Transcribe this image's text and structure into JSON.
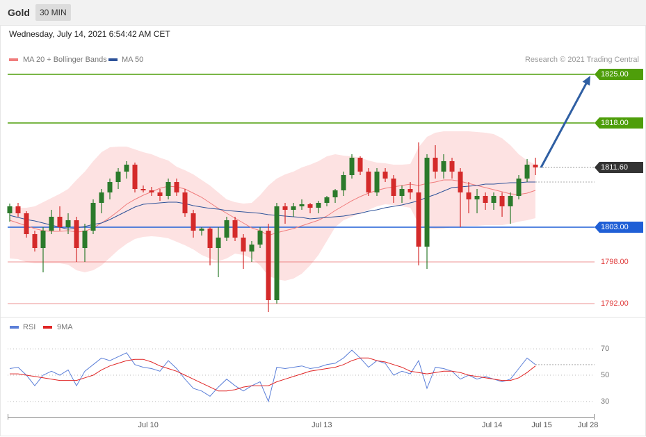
{
  "header": {
    "symbol": "Gold",
    "interval": "30 MIN",
    "timestamp": "Wednesday, July 14, 2021 6:54:42 AM CET"
  },
  "chart_data": [
    {
      "type": "candlestick",
      "credit": "Research © 2021 Trading Central",
      "up_color": "#2b7a2b",
      "down_color": "#d42a2a",
      "xlim": [
        -0.25,
        70.08
      ],
      "ylim": [
        1790.2,
        1826.2
      ],
      "open": [
        1805.0,
        1806.0,
        1805.0,
        1802.0,
        1800.0,
        1802.5,
        1804.5,
        1803.0,
        1804.0,
        1800.0,
        1802.5,
        1806.5,
        1808.0,
        1809.5,
        1811.0,
        1812.0,
        1808.5,
        1808.3,
        1808.0,
        1807.5,
        1809.5,
        1808.0,
        1805.0,
        1802.5,
        1802.8,
        1800.0,
        1801.5,
        1804.0,
        1801.5,
        1799.5,
        1800.5,
        1802.5,
        1792.5,
        1806.0,
        1805.5,
        1806.0,
        1806.3,
        1805.8,
        1806.5,
        1807.3,
        1808.3,
        1810.5,
        1813.0,
        1811.0,
        1808.0,
        1811.0,
        1810.0,
        1807.5,
        1808.5,
        1808.0,
        1800.2,
        1813.0,
        1811.0,
        1812.5,
        1811.0,
        1808.0,
        1807.0,
        1807.5,
        1806.5,
        1807.5,
        1806.0,
        1807.5,
        1810.0,
        1812.0
      ],
      "high": [
        1806.4,
        1806.5,
        1805.3,
        1802.5,
        1803.0,
        1805.5,
        1806.0,
        1805.0,
        1804.5,
        1803.5,
        1807.0,
        1808.5,
        1810.0,
        1811.5,
        1812.5,
        1812.3,
        1809.0,
        1808.8,
        1808.5,
        1810.0,
        1810.0,
        1808.5,
        1805.5,
        1803.0,
        1803.0,
        1803.0,
        1804.5,
        1804.5,
        1802.0,
        1801.0,
        1803.0,
        1803.5,
        1806.5,
        1806.5,
        1806.5,
        1807.0,
        1806.5,
        1806.8,
        1807.5,
        1808.5,
        1811.0,
        1813.5,
        1813.2,
        1811.5,
        1811.5,
        1811.5,
        1810.5,
        1809.0,
        1809.5,
        1815.2,
        1813.5,
        1814.8,
        1813.5,
        1813.0,
        1811.5,
        1809.5,
        1808.5,
        1808.0,
        1808.0,
        1808.0,
        1808.0,
        1810.5,
        1812.8,
        1813.0
      ],
      "low": [
        1803.8,
        1804.5,
        1801.5,
        1799.5,
        1796.5,
        1802.0,
        1802.5,
        1802.0,
        1798.0,
        1798.0,
        1802.0,
        1805.0,
        1807.0,
        1808.5,
        1810.0,
        1808.0,
        1808.0,
        1807.5,
        1806.8,
        1807.0,
        1807.5,
        1804.5,
        1801.5,
        1801.8,
        1797.5,
        1795.8,
        1801.0,
        1801.0,
        1797.0,
        1798.0,
        1800.0,
        1790.8,
        1792.0,
        1803.5,
        1804.5,
        1805.5,
        1805.0,
        1805.0,
        1806.0,
        1806.5,
        1807.5,
        1810.0,
        1810.5,
        1807.5,
        1807.5,
        1809.5,
        1806.5,
        1806.5,
        1807.0,
        1797.5,
        1797.0,
        1810.0,
        1810.0,
        1810.0,
        1803.0,
        1805.0,
        1805.0,
        1805.5,
        1805.5,
        1804.5,
        1803.5,
        1807.0,
        1809.5,
        1810.5
      ],
      "close": [
        1806.0,
        1805.0,
        1802.0,
        1800.0,
        1802.5,
        1804.5,
        1803.0,
        1804.0,
        1800.0,
        1802.5,
        1806.5,
        1808.0,
        1809.5,
        1811.0,
        1812.0,
        1808.5,
        1808.3,
        1808.0,
        1807.5,
        1809.5,
        1808.0,
        1805.0,
        1802.5,
        1802.8,
        1800.0,
        1801.5,
        1804.0,
        1801.5,
        1799.5,
        1800.5,
        1802.5,
        1792.5,
        1806.0,
        1805.5,
        1806.0,
        1806.3,
        1805.8,
        1806.5,
        1807.3,
        1808.3,
        1810.5,
        1813.0,
        1811.0,
        1808.0,
        1811.0,
        1810.0,
        1807.5,
        1808.5,
        1808.0,
        1800.2,
        1813.0,
        1811.0,
        1812.5,
        1811.0,
        1808.0,
        1807.0,
        1807.5,
        1806.5,
        1807.5,
        1806.0,
        1807.5,
        1810.0,
        1812.0,
        1811.6
      ],
      "overlays": [
        {
          "name": "MA 20 + Bollinger Bands",
          "color": "#f07c7c",
          "band_color": "#fde2e2",
          "values": [
            1804.0,
            1803.6,
            1803.2,
            1802.8,
            1802.5,
            1802.4,
            1802.4,
            1802.5,
            1802.3,
            1802.4,
            1802.9,
            1803.6,
            1804.4,
            1805.3,
            1806.3,
            1807.0,
            1807.6,
            1808.1,
            1808.6,
            1808.9,
            1808.8,
            1808.5,
            1807.9,
            1807.3,
            1806.5,
            1805.7,
            1805.0,
            1804.3,
            1803.6,
            1802.9,
            1802.5,
            1801.8,
            1802.2,
            1802.5,
            1802.8,
            1803.2,
            1803.6,
            1804.0,
            1804.6,
            1805.4,
            1806.1,
            1806.8,
            1807.4,
            1807.9,
            1808.3,
            1808.6,
            1808.8,
            1809.0,
            1809.2,
            1809.0,
            1809.3,
            1809.5,
            1809.8,
            1809.8,
            1809.6,
            1809.3,
            1809.0,
            1808.7,
            1808.4,
            1808.1,
            1807.8,
            1807.7,
            1807.9,
            1808.3
          ],
          "upper": [
            1806.0,
            1805.8,
            1805.8,
            1806.0,
            1806.6,
            1807.2,
            1807.8,
            1808.5,
            1809.8,
            1811.0,
            1812.5,
            1813.8,
            1814.5,
            1814.6,
            1814.6,
            1814.2,
            1813.8,
            1813.5,
            1813.0,
            1812.6,
            1811.7,
            1811.2,
            1810.6,
            1809.8,
            1809.0,
            1808.0,
            1807.0,
            1806.6,
            1806.4,
            1806.5,
            1807.6,
            1809.0,
            1810.0,
            1810.6,
            1811.0,
            1811.6,
            1812.0,
            1812.5,
            1813.2,
            1813.5,
            1813.3,
            1813.2,
            1813.0,
            1812.6,
            1812.3,
            1812.2,
            1812.0,
            1812.0,
            1812.1,
            1814.5,
            1816.0,
            1816.6,
            1816.8,
            1816.8,
            1816.8,
            1816.8,
            1816.7,
            1816.6,
            1816.4,
            1815.8,
            1814.8,
            1813.5,
            1812.6,
            1812.0
          ],
          "lower": [
            1798.5,
            1798.4,
            1798.0,
            1797.8,
            1797.8,
            1797.8,
            1797.8,
            1797.6,
            1796.8,
            1796.5,
            1796.8,
            1797.5,
            1798.6,
            1799.7,
            1800.6,
            1801.3,
            1801.6,
            1801.7,
            1801.6,
            1801.4,
            1800.9,
            1800.4,
            1799.8,
            1799.0,
            1798.5,
            1798.1,
            1798.5,
            1799.2,
            1799.0,
            1798.5,
            1797.5,
            1796.0,
            1795.5,
            1795.3,
            1795.6,
            1796.3,
            1797.5,
            1799.0,
            1801.0,
            1803.0,
            1804.0,
            1804.5,
            1805.0,
            1805.5,
            1806.0,
            1806.3,
            1806.2,
            1806.0,
            1805.8,
            1803.5,
            1802.8,
            1802.7,
            1802.8,
            1803.0,
            1803.1,
            1803.2,
            1803.2,
            1803.3,
            1803.3,
            1803.3,
            1803.5,
            1803.8,
            1804.0,
            1804.3
          ]
        },
        {
          "name": "MA 50",
          "color": "#2d5299",
          "values": [
            1804.7,
            1804.4,
            1804.1,
            1803.9,
            1803.6,
            1803.3,
            1803.0,
            1802.7,
            1802.9,
            1803.1,
            1803.4,
            1803.6,
            1804.1,
            1804.7,
            1805.3,
            1805.9,
            1806.3,
            1806.4,
            1806.5,
            1806.6,
            1806.6,
            1806.4,
            1806.1,
            1805.9,
            1805.7,
            1805.6,
            1805.4,
            1805.3,
            1805.2,
            1805.1,
            1805.0,
            1804.8,
            1804.7,
            1804.6,
            1804.5,
            1804.4,
            1804.2,
            1804.3,
            1804.4,
            1804.5,
            1804.6,
            1804.8,
            1805.0,
            1805.3,
            1805.5,
            1805.8,
            1806.0,
            1806.2,
            1806.5,
            1806.8,
            1807.3,
            1807.7,
            1808.2,
            1808.7,
            1808.8,
            1808.9,
            1809.0,
            1809.2,
            1809.2,
            1809.3,
            1809.4,
            1809.4,
            1809.5,
            1809.5
          ]
        }
      ],
      "levels": [
        {
          "value": 1825,
          "label": "1825.00",
          "color": "#4e9e0a",
          "line_style": "solid",
          "label_style": "tag"
        },
        {
          "value": 1818,
          "label": "1818.00",
          "color": "#4e9e0a",
          "line_style": "solid",
          "label_style": "tag"
        },
        {
          "value": 1811.6,
          "label": "1811.60",
          "color": "#333333",
          "line_style": "dotted",
          "label_style": "tag"
        },
        {
          "value": 1803,
          "label": "1803.00",
          "color": "#1f5fd6",
          "line_style": "solid",
          "label_style": "tag"
        },
        {
          "value": 1798,
          "label": "1798.00",
          "color": "#e03c3c",
          "line_style": "solid",
          "label_style": "text"
        },
        {
          "value": 1792,
          "label": "1792.00",
          "color": "#e03c3c",
          "line_style": "solid",
          "label_style": "text"
        }
      ]
    },
    {
      "type": "line",
      "xlim": [
        -0.25,
        70.08
      ],
      "ylim": [
        21,
        79
      ],
      "yticks": [
        30,
        50,
        70
      ],
      "grid": true,
      "xticks": [
        {
          "value": 16.6,
          "label": "Jul 10"
        },
        {
          "value": 37.4,
          "label": "Jul 13"
        },
        {
          "value": 57.8,
          "label": "Jul 14"
        },
        {
          "value": 63.75,
          "label": "Jul 15"
        },
        {
          "value": 69.3,
          "label": "Jul 28"
        }
      ],
      "series": [
        {
          "name": "RSI",
          "color": "#5b7fd8",
          "values": [
            55,
            56,
            50,
            42,
            50,
            53,
            50,
            54,
            42,
            53,
            58,
            63,
            61,
            64,
            67,
            58,
            56,
            55,
            53,
            61,
            55,
            47,
            40,
            38,
            34,
            41,
            47,
            42,
            38,
            42,
            45,
            30,
            56,
            55,
            56,
            57,
            55,
            56,
            58,
            59,
            63,
            69,
            63,
            56,
            61,
            59,
            50,
            53,
            51,
            61,
            40,
            56,
            55,
            53,
            47,
            50,
            47,
            49,
            47,
            45,
            47,
            55,
            63,
            58
          ]
        },
        {
          "name": "9MA",
          "color": "#e02424",
          "values": [
            51,
            51,
            50,
            49,
            48,
            47,
            46,
            46,
            46,
            48,
            50,
            54,
            57,
            59,
            61,
            62,
            62,
            60,
            57,
            55,
            53,
            50,
            47,
            44,
            41,
            38,
            38,
            39,
            41,
            42,
            42,
            42,
            45,
            47,
            49,
            51,
            53,
            54,
            55,
            56,
            58,
            61,
            63,
            63,
            61,
            60,
            58,
            56,
            53,
            52,
            51,
            52,
            53,
            53,
            52,
            50,
            49,
            48,
            47,
            46,
            46,
            48,
            52,
            57
          ]
        }
      ]
    }
  ]
}
